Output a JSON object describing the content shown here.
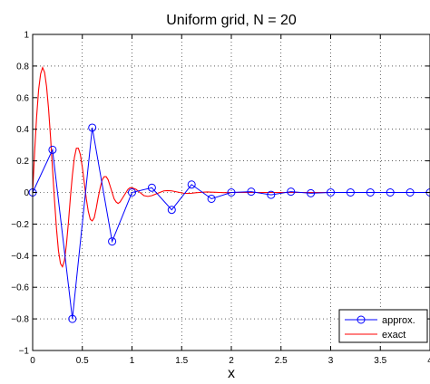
{
  "chart_data": {
    "type": "line",
    "title": "Uniform grid, N = 20",
    "xlabel": "x",
    "ylabel": "",
    "xlim": [
      0,
      4
    ],
    "ylim": [
      -1,
      1
    ],
    "xticks": [
      0,
      0.5,
      1,
      1.5,
      2,
      2.5,
      3,
      3.5,
      4
    ],
    "xtick_labels": [
      "0",
      "0.5",
      "1",
      "1.5",
      "2",
      "2.5",
      "3",
      "3.5",
      "4"
    ],
    "yticks": [
      -1,
      -0.8,
      -0.6,
      -0.4,
      -0.2,
      0,
      0.2,
      0.4,
      0.6,
      0.8,
      1
    ],
    "ytick_labels": [
      "−1",
      "−0.8",
      "−0.6",
      "−0.4",
      "−0.2",
      "0",
      "0.2",
      "0.4",
      "0.6",
      "0.8",
      "1"
    ],
    "grid": true,
    "legend_position": "bottom-right",
    "series": [
      {
        "name": "approx.",
        "color": "#0000ff",
        "marker": "circle",
        "x": [
          0,
          0.2,
          0.4,
          0.6,
          0.8,
          1.0,
          1.2,
          1.4,
          1.6,
          1.8,
          2.0,
          2.2,
          2.4,
          2.6,
          2.8,
          3.0,
          3.2,
          3.4,
          3.6,
          3.8,
          4.0
        ],
        "y": [
          0,
          0.27,
          -0.8,
          0.41,
          -0.31,
          0,
          0.03,
          -0.11,
          0.05,
          -0.04,
          0,
          0.005,
          -0.015,
          0.005,
          -0.005,
          0,
          0,
          0,
          0,
          0,
          0
        ]
      },
      {
        "name": "exact",
        "color": "#ff0000",
        "x": [
          0,
          0.02,
          0.04,
          0.06,
          0.08,
          0.1,
          0.12,
          0.14,
          0.16,
          0.18,
          0.2,
          0.22,
          0.24,
          0.26,
          0.28,
          0.3,
          0.32,
          0.34,
          0.36,
          0.38,
          0.4,
          0.42,
          0.44,
          0.46,
          0.48,
          0.5,
          0.52,
          0.54,
          0.56,
          0.58,
          0.6,
          0.62,
          0.64,
          0.66,
          0.68,
          0.7,
          0.72,
          0.74,
          0.76,
          0.78,
          0.8,
          0.82,
          0.84,
          0.86,
          0.88,
          0.9,
          0.92,
          0.94,
          0.96,
          0.98,
          1.0,
          1.04,
          1.08,
          1.12,
          1.16,
          1.2,
          1.24,
          1.28,
          1.32,
          1.36,
          1.4,
          1.44,
          1.48,
          1.52,
          1.56,
          1.6,
          1.64,
          1.68,
          1.72,
          1.76,
          1.8,
          1.84,
          1.88,
          1.92,
          1.96,
          2.0,
          2.1,
          2.2,
          2.3,
          2.4,
          2.5,
          2.6,
          2.7,
          2.8,
          2.9,
          3.0,
          3.25,
          3.5,
          3.75,
          4.0
        ],
        "y": [
          0,
          0.26,
          0.48,
          0.65,
          0.75,
          0.79,
          0.76,
          0.67,
          0.53,
          0.35,
          0.15,
          -0.05,
          -0.23,
          -0.37,
          -0.45,
          -0.47,
          -0.43,
          -0.33,
          -0.19,
          -0.03,
          0.11,
          0.22,
          0.28,
          0.28,
          0.24,
          0.16,
          0.06,
          -0.04,
          -0.12,
          -0.17,
          -0.18,
          -0.16,
          -0.1,
          -0.03,
          0.03,
          0.08,
          0.1,
          0.1,
          0.08,
          0.04,
          0,
          -0.04,
          -0.06,
          -0.07,
          -0.06,
          -0.04,
          -0.02,
          0,
          0.02,
          0.03,
          0.03,
          0.02,
          0,
          -0.02,
          -0.025,
          -0.02,
          -0.01,
          0,
          0.01,
          0.012,
          0.01,
          0.005,
          0,
          -0.005,
          -0.006,
          -0.005,
          -0.002,
          0,
          0.002,
          0.003,
          0.002,
          0.001,
          0,
          -0.001,
          -0.001,
          0,
          0,
          0,
          0,
          0,
          0,
          0,
          0,
          0,
          0,
          0,
          0,
          0,
          0,
          0
        ]
      }
    ]
  }
}
